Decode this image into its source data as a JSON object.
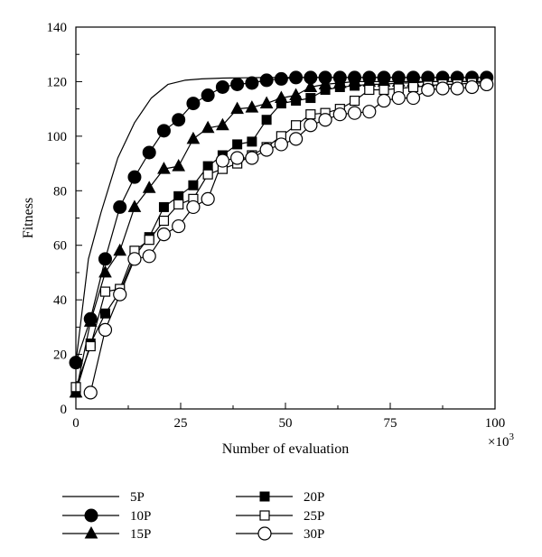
{
  "chart_data": {
    "type": "line",
    "xlabel": "Number of evaluation",
    "x_multiplier": "×10",
    "x_multiplier_exp": "3",
    "ylabel": "Fitness",
    "xlim": [
      0,
      100
    ],
    "ylim": [
      0,
      140
    ],
    "xticks": [
      0,
      25,
      50,
      75,
      100
    ],
    "yticks": [
      0,
      20,
      40,
      60,
      80,
      100,
      120,
      140
    ],
    "grid": false,
    "legend_position": "below",
    "series": [
      {
        "name": "5P",
        "marker": "none",
        "x": [
          0,
          3,
          6,
          10,
          14,
          18,
          22,
          26,
          30,
          35,
          40,
          45,
          50,
          60,
          70,
          80,
          90,
          98
        ],
        "y": [
          17,
          55,
          72,
          92,
          105,
          114,
          119,
          120.5,
          121,
          121.3,
          121.4,
          121.5,
          121.5,
          121.5,
          121.5,
          121.5,
          121.5,
          121.5
        ]
      },
      {
        "name": "10P",
        "marker": "filled-circle",
        "x": [
          0,
          3.5,
          7,
          10.5,
          14,
          17.5,
          21,
          24.5,
          28,
          31.5,
          35,
          38.5,
          42,
          45.5,
          49,
          52.5,
          56,
          59.5,
          63,
          66.5,
          70,
          73.5,
          77,
          80.5,
          84,
          87.5,
          91,
          94.5,
          98
        ],
        "y": [
          17,
          33,
          55,
          74,
          85,
          94,
          102,
          106,
          112,
          115,
          118,
          119,
          119.5,
          120.5,
          121,
          121.5,
          121.5,
          121.5,
          121.5,
          121.5,
          121.5,
          121.5,
          121.5,
          121.5,
          121.5,
          121.5,
          121.5,
          121.5,
          121.5
        ]
      },
      {
        "name": "15P",
        "marker": "filled-triangle",
        "x": [
          0,
          3.5,
          7,
          10.5,
          14,
          17.5,
          21,
          24.5,
          28,
          31.5,
          35,
          38.5,
          42,
          45.5,
          49,
          52.5,
          56,
          59.5,
          63,
          66.5,
          70,
          73.5,
          77,
          80.5,
          84,
          87.5,
          91,
          94.5,
          98
        ],
        "y": [
          6,
          32,
          50,
          58,
          74,
          81,
          88,
          89,
          99,
          103,
          104,
          110,
          110.5,
          112,
          114,
          115,
          118,
          119,
          119.5,
          120,
          120,
          120,
          120,
          120,
          120,
          120,
          120,
          120,
          120
        ]
      },
      {
        "name": "20P",
        "marker": "filled-square",
        "x": [
          0,
          3.5,
          7,
          10.5,
          14,
          17.5,
          21,
          24.5,
          28,
          31.5,
          35,
          38.5,
          42,
          45.5,
          49,
          52.5,
          56,
          59.5,
          63,
          66.5,
          70,
          73.5,
          77,
          80.5,
          84,
          87.5,
          91,
          94.5,
          98
        ],
        "y": [
          6,
          24,
          35,
          43,
          56,
          63,
          74,
          78,
          82,
          89,
          93,
          97,
          98,
          106,
          112,
          113,
          114,
          117,
          118,
          118.5,
          119,
          119,
          119.5,
          119.5,
          120,
          120,
          120,
          120,
          120
        ]
      },
      {
        "name": "25P",
        "marker": "open-square",
        "x": [
          0,
          3.5,
          7,
          10.5,
          14,
          17.5,
          21,
          24.5,
          28,
          31.5,
          35,
          38.5,
          42,
          45.5,
          49,
          52.5,
          56,
          59.5,
          63,
          66.5,
          70,
          73.5,
          77,
          80.5,
          84,
          87.5,
          91,
          94.5,
          98
        ],
        "y": [
          8,
          23,
          43,
          44,
          58,
          62,
          69,
          75,
          77,
          86,
          88,
          90,
          93,
          96,
          100,
          104,
          108,
          108.5,
          110,
          113,
          117,
          117,
          117.5,
          118,
          118.5,
          119,
          119,
          119.5,
          119.5
        ]
      },
      {
        "name": "30P",
        "marker": "open-circle",
        "x": [
          3.5,
          7,
          10.5,
          14,
          17.5,
          21,
          24.5,
          28,
          31.5,
          35,
          38.5,
          42,
          45.5,
          49,
          52.5,
          56,
          59.5,
          63,
          66.5,
          70,
          73.5,
          77,
          80.5,
          84,
          87.5,
          91,
          94.5,
          98
        ],
        "y": [
          6,
          29,
          42,
          55,
          56,
          64,
          67,
          74,
          77,
          91,
          92,
          92,
          95,
          97,
          99,
          104,
          106,
          108,
          108.5,
          109,
          113,
          114,
          114,
          117,
          117.5,
          117.5,
          118,
          119
        ]
      }
    ]
  }
}
